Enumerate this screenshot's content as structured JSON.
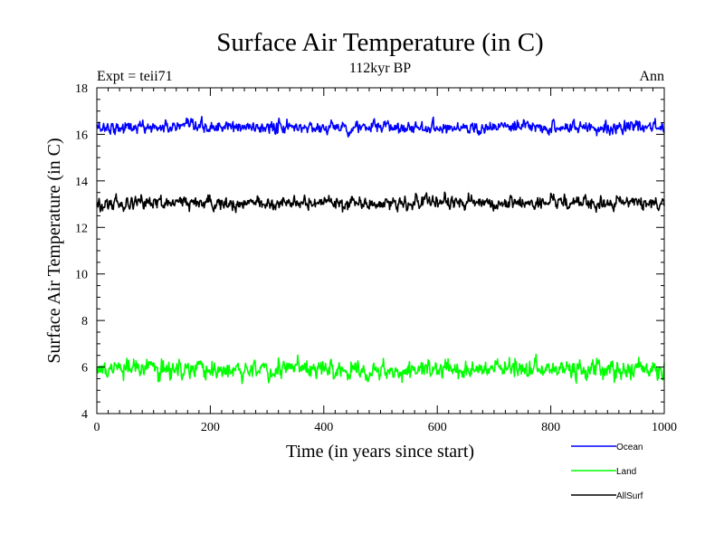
{
  "chart_data": {
    "type": "line",
    "title": "Surface Air Temperature (in C)",
    "subtitle": "112kyr BP",
    "left_label": "Expt = teii71",
    "right_label": "Ann",
    "xlabel": "Time (in years since start)",
    "ylabel": "Surface Air Temperature (in C)",
    "xlim": [
      0,
      1000
    ],
    "ylim": [
      4,
      18
    ],
    "xticks": [
      "0",
      "200",
      "400",
      "600",
      "800",
      "1000"
    ],
    "yticks": [
      "4",
      "6",
      "8",
      "10",
      "12",
      "14",
      "16",
      "18"
    ],
    "grid": false,
    "legend_position": "bottom-right",
    "series": [
      {
        "name": "Ocean",
        "color": "#0000ff",
        "mean": 16.3,
        "noise": 0.12
      },
      {
        "name": "Land",
        "color": "#00ff00",
        "mean": 5.9,
        "noise": 0.18
      },
      {
        "name": "AllSurf",
        "color": "#000000",
        "mean": 13.05,
        "noise": 0.13
      }
    ]
  }
}
